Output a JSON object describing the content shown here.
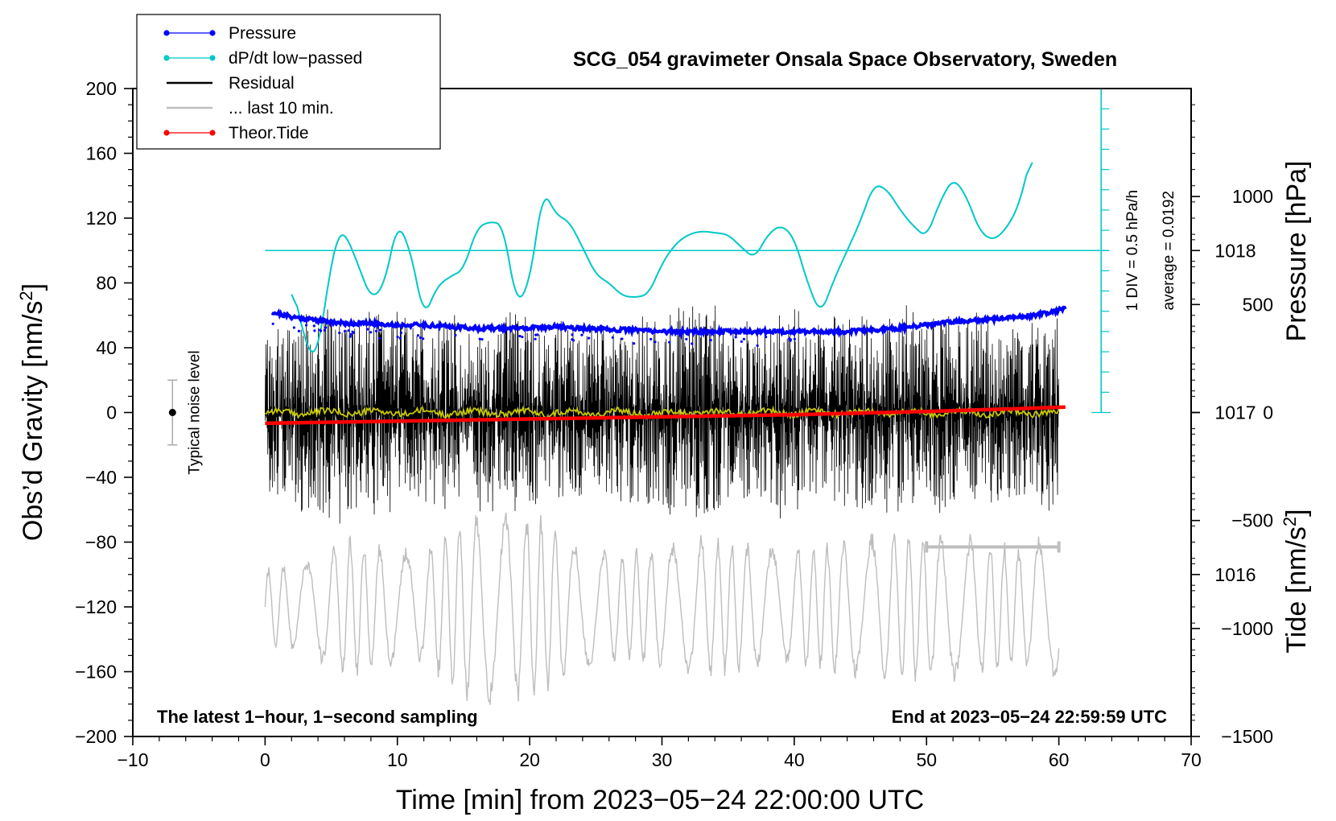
{
  "chart_data": {
    "type": "line",
    "title": "SCG_054 gravimeter Onsala Space Observatory, Sweden",
    "xlabel": "Time [min] from 2023−05−24 22:00:00 UTC",
    "ylabel_left": "Obs’d Gravity [nm/s²]",
    "ylabel_left_main": "Obs’d Gravity [nm/s",
    "ylabel_left_sup": "2",
    "ylabel_left_end": "]",
    "ylabel_right_pressure": "Pressure [hPa]",
    "ylabel_right_tide_main": "Tide [nm/s",
    "ylabel_right_tide_sup": "2",
    "ylabel_right_tide_end": "]",
    "xlim": [
      -10,
      70
    ],
    "ylim": [
      -200,
      200
    ],
    "pressure_ylim": [
      1015.0,
      1019.0
    ],
    "tide_ylim": [
      -1500,
      1500
    ],
    "x_ticks": [
      "−10",
      "0",
      "10",
      "20",
      "30",
      "40",
      "50",
      "60",
      "70"
    ],
    "x_tick_values": [
      -10,
      0,
      10,
      20,
      30,
      40,
      50,
      60,
      70
    ],
    "y_ticks": [
      "200",
      "160",
      "120",
      "80",
      "40",
      "0",
      "−40",
      "−80",
      "−120",
      "−160",
      "−200"
    ],
    "y_tick_values": [
      200,
      160,
      120,
      80,
      40,
      0,
      -40,
      -80,
      -120,
      -160,
      -200
    ],
    "pressure_ticks": [
      "1018",
      "1017",
      "1016"
    ],
    "pressure_tick_values": [
      1018,
      1017,
      1016
    ],
    "tide_ticks": [
      "1000",
      "500",
      "0",
      "−500",
      "−1000",
      "−1500"
    ],
    "tide_tick_values": [
      1000,
      500,
      0,
      -500,
      -1000,
      -1500
    ],
    "legend": [
      {
        "label": "Pressure",
        "color": "#0000ff",
        "marker": true
      },
      {
        "label": "dP/dt low−passed",
        "color": "#00c8c8",
        "marker": true
      },
      {
        "label": "Residual",
        "color": "#000000",
        "marker": false
      },
      {
        "label": "... last 10 min.",
        "color": "#bebebe",
        "marker": false
      },
      {
        "label": "Theor.Tide",
        "color": "#ff0000",
        "marker": true
      }
    ],
    "colors": {
      "pressure": "#0000ff",
      "dpdt": "#00c8c8",
      "residual": "#000000",
      "residual_smooth": "#c8c800",
      "last10": "#bebebe",
      "tide": "#ff0000"
    },
    "series": [
      {
        "name": "Pressure",
        "unit": "hPa",
        "x": [
          0.5,
          2,
          4,
          6,
          8,
          10,
          12,
          14,
          16,
          18,
          20,
          22,
          24,
          26,
          28,
          30,
          32,
          34,
          36,
          38,
          40,
          42,
          44,
          46,
          48,
          50,
          52,
          54,
          56,
          58,
          60.5
        ],
        "values": [
          1017.62,
          1017.59,
          1017.57,
          1017.55,
          1017.55,
          1017.54,
          1017.54,
          1017.53,
          1017.52,
          1017.52,
          1017.52,
          1017.53,
          1017.52,
          1017.51,
          1017.51,
          1017.5,
          1017.5,
          1017.5,
          1017.5,
          1017.5,
          1017.5,
          1017.5,
          1017.5,
          1017.51,
          1017.52,
          1017.54,
          1017.56,
          1017.57,
          1017.58,
          1017.6,
          1017.64
        ]
      },
      {
        "name": "dP/dt low−passed",
        "unit": "chart units (1 DIV = 0.5 hPa/h, zero line at 100)",
        "x": [
          2,
          3,
          3.5,
          4,
          5,
          5.5,
          6,
          7,
          8,
          9,
          10,
          11,
          12,
          13,
          14,
          15,
          16,
          17,
          18,
          19,
          20,
          21,
          22,
          23,
          24,
          25,
          26,
          27,
          28,
          29,
          30,
          31,
          32,
          33,
          34,
          35,
          36,
          37,
          38,
          39,
          40,
          41,
          42,
          43,
          44,
          45,
          46,
          47,
          48,
          49,
          50,
          51,
          52,
          53,
          54,
          55,
          56,
          57,
          58
        ],
        "values": [
          81,
          45,
          34,
          38,
          92,
          110,
          112,
          92,
          70,
          78,
          118,
          100,
          58,
          78,
          84,
          88,
          114,
          118,
          116,
          66,
          80,
          138,
          122,
          118,
          102,
          85,
          80,
          72,
          71,
          73,
          92,
          104,
          110,
          112,
          111,
          110,
          102,
          95,
          110,
          116,
          108,
          80,
          60,
          82,
          100,
          118,
          141,
          138,
          125,
          115,
          108,
          130,
          145,
          134,
          112,
          106,
          113,
          128,
          162
        ]
      },
      {
        "name": "Residual",
        "unit": "nm/s²",
        "x_range": [
          0,
          60
        ],
        "amplitude_envelope_x": [
          0,
          3,
          6,
          9,
          12,
          15,
          18,
          21,
          24,
          27,
          30,
          33,
          36,
          39,
          42,
          45,
          48,
          51,
          54,
          57,
          60
        ],
        "amplitude_envelope": [
          45,
          60,
          68,
          60,
          55,
          62,
          60,
          58,
          52,
          55,
          62,
          66,
          60,
          62,
          56,
          62,
          66,
          60,
          58,
          55,
          62
        ],
        "running_mean": 0
      },
      {
        "name": "... last 10 min.",
        "unit": "nm/s²",
        "x_range": [
          0,
          60
        ],
        "offset": -120,
        "amplitude_envelope_x": [
          0,
          3,
          6,
          9,
          12,
          15,
          18,
          21,
          24,
          27,
          30,
          33,
          36,
          39,
          42,
          45,
          48,
          51,
          54,
          57,
          60
        ],
        "amplitude_envelope": [
          25,
          30,
          45,
          40,
          35,
          60,
          62,
          58,
          40,
          35,
          40,
          45,
          42,
          38,
          40,
          45,
          50,
          48,
          45,
          38,
          50
        ]
      },
      {
        "name": "Theor.Tide",
        "unit": "nm/s² (tide axis)",
        "x": [
          0,
          10,
          20,
          30,
          40,
          50,
          60.5
        ],
        "values": [
          -50,
          -40,
          -30,
          -20,
          -10,
          5,
          25
        ]
      }
    ],
    "annotations": {
      "dpdt_scale": "1 DIV = 0.5 hPa/h",
      "dpdt_average": "average = 0.0192",
      "noise": "Typical noise level",
      "noise_bar_range": [
        -20,
        20
      ],
      "last10_bar_x": [
        50,
        60
      ],
      "last10_bar_y": -83,
      "footer_left": "The latest 1−hour, 1−second sampling",
      "footer_right": "End at 2023−05−24 22:59:59 UTC"
    }
  }
}
